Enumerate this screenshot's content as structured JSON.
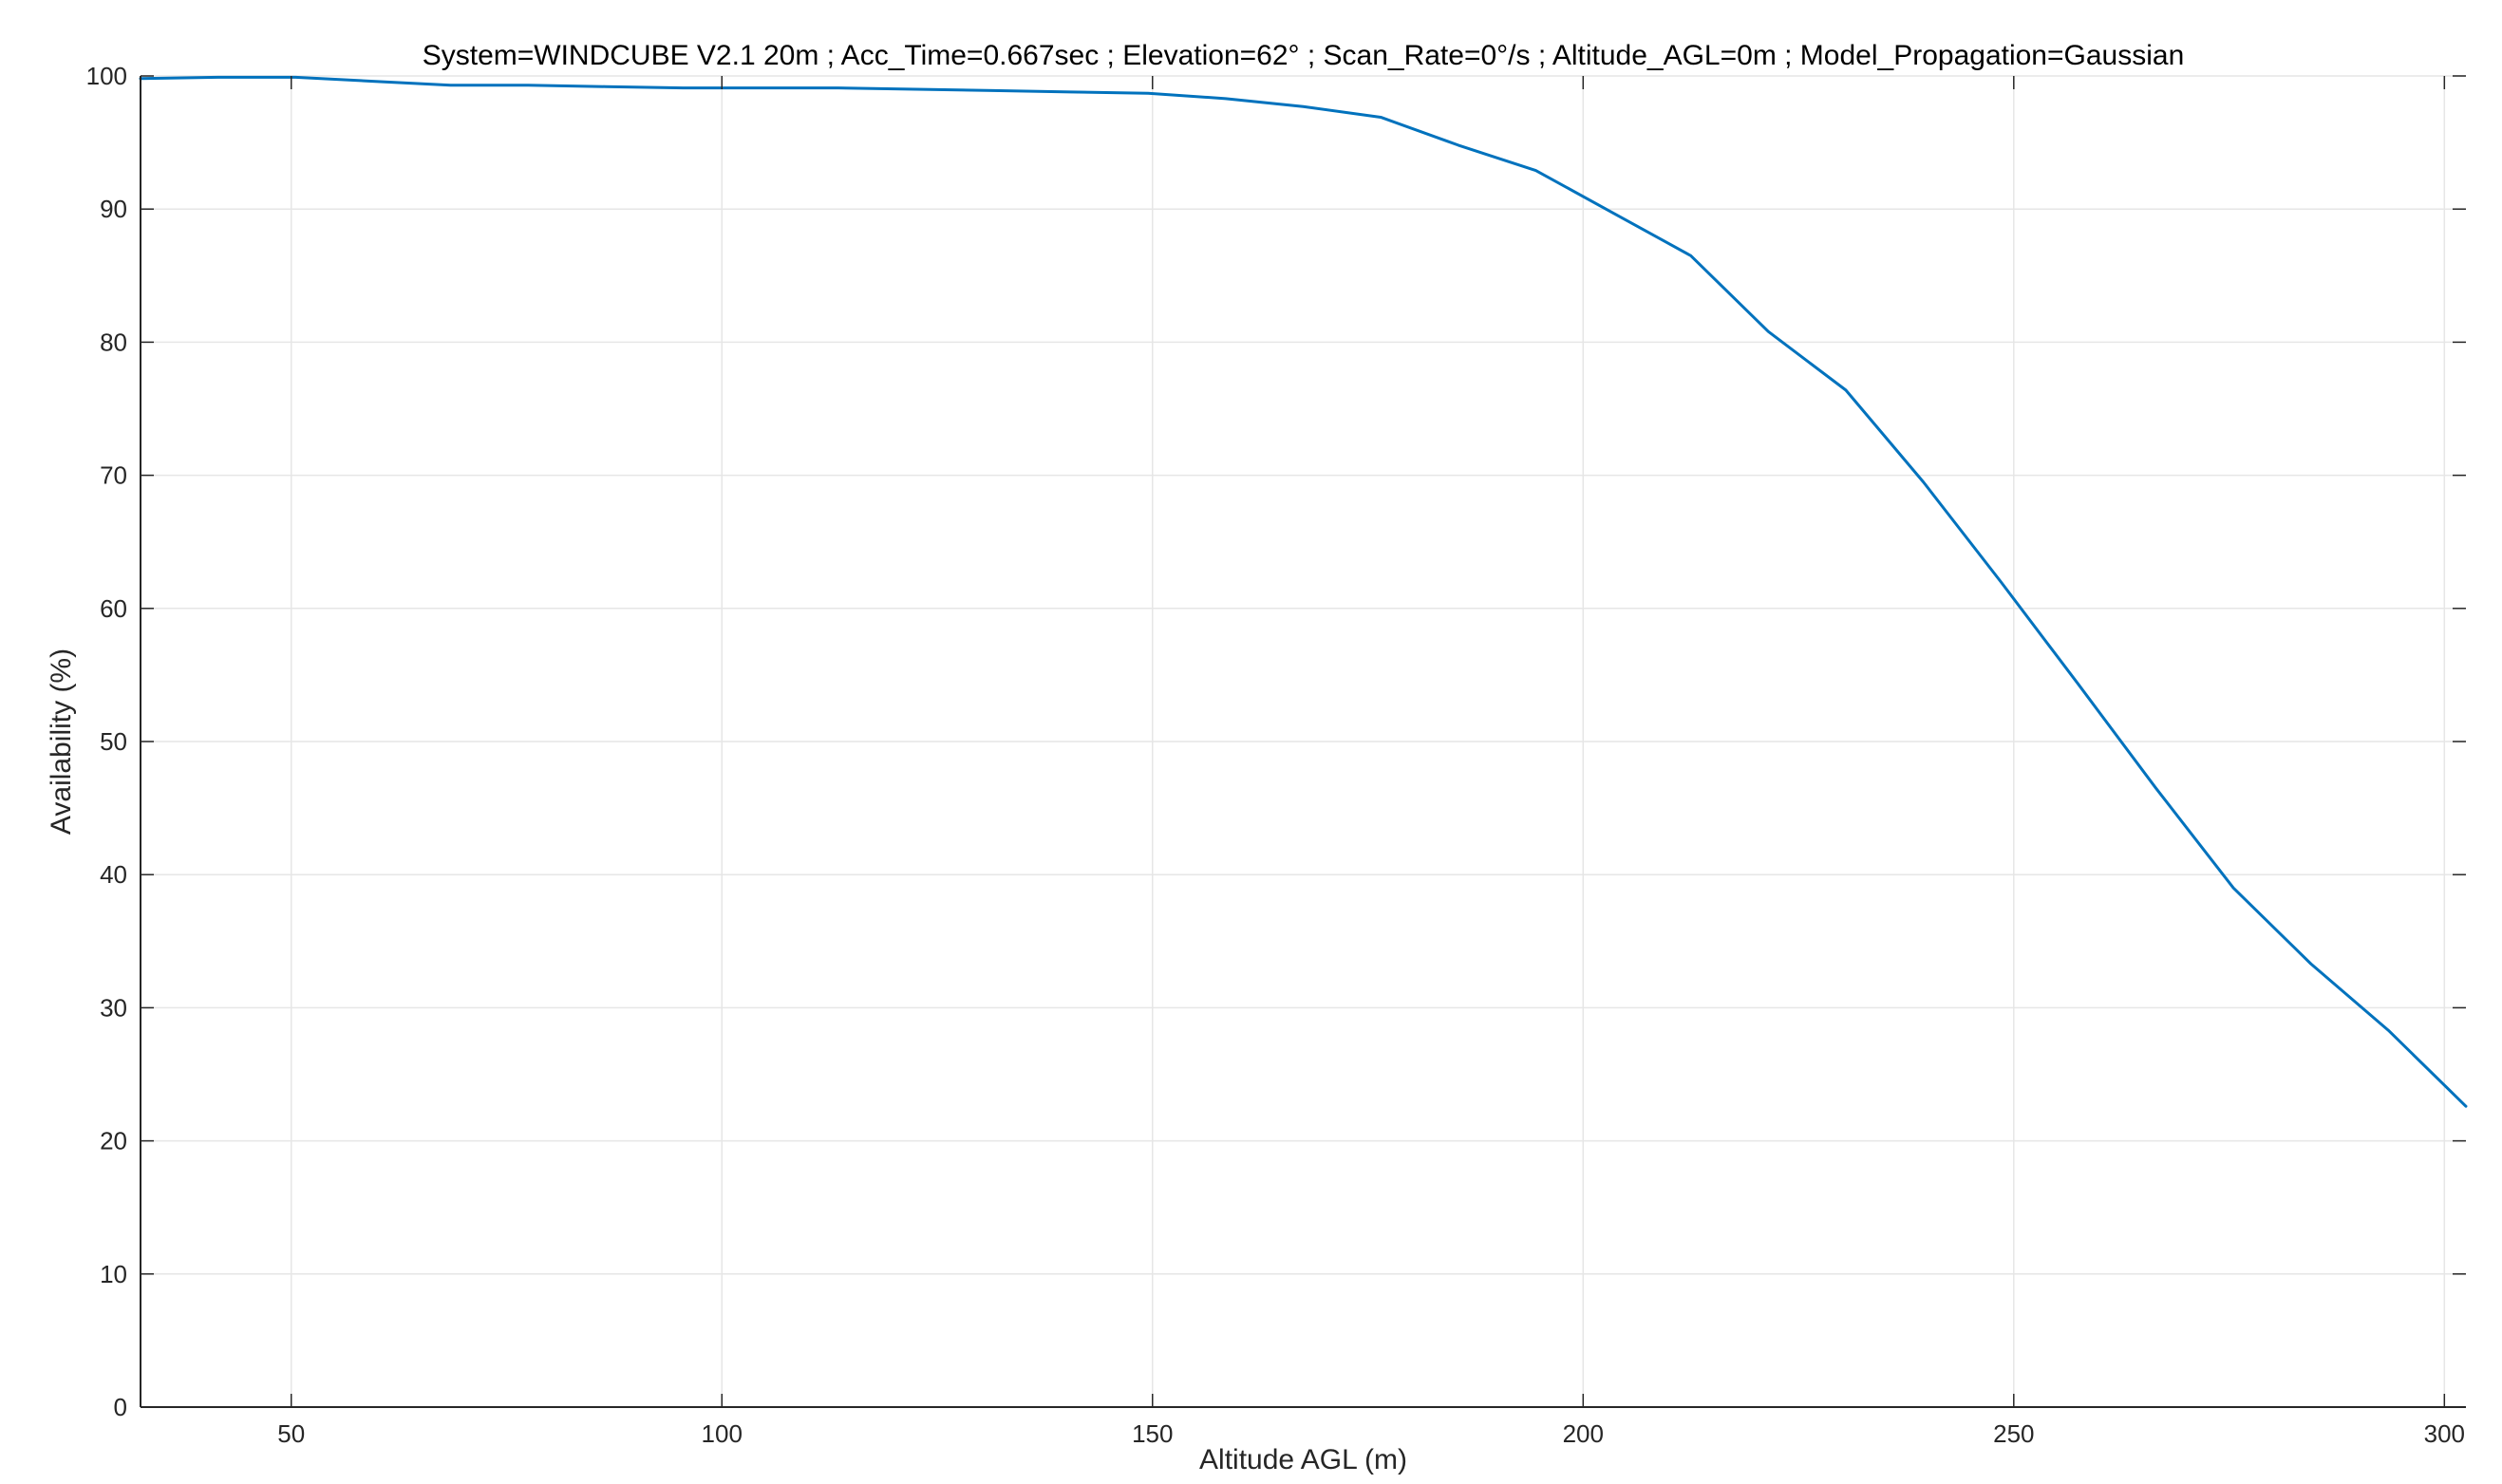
{
  "chart_data": {
    "type": "line",
    "title": "System=WINDCUBE V2.1  20m ; Acc_Time=0.667sec ; Elevation=62° ; Scan_Rate=0°/s ; Altitude_AGL=0m ; Model_Propagation=Gaussian",
    "xlabel": "Altitude AGL (m)",
    "ylabel": "Availability (%)",
    "xlim": [
      32.5,
      302.5
    ],
    "ylim": [
      0,
      100
    ],
    "xticks": [
      50,
      100,
      150,
      200,
      250,
      300
    ],
    "yticks": [
      0,
      10,
      20,
      30,
      40,
      50,
      60,
      70,
      80,
      90,
      100
    ],
    "grid": true,
    "series": [
      {
        "color": "#0072bd",
        "x": [
          32.5,
          41.5,
          50.5,
          59.5,
          68.5,
          77.5,
          86.5,
          95.5,
          104.5,
          113.5,
          122.5,
          131.5,
          140.5,
          149.5,
          158.5,
          167.5,
          176.5,
          185.5,
          194.5,
          203.5,
          212.5,
          221.5,
          230.5,
          239.5,
          248.5,
          257.5,
          266.5,
          275.5,
          284.5,
          293.5,
          302.5
        ],
        "y": [
          99.8,
          99.9,
          99.9,
          99.6,
          99.3,
          99.3,
          99.2,
          99.1,
          99.1,
          99.1,
          99.0,
          98.9,
          98.8,
          98.7,
          98.3,
          97.7,
          96.9,
          94.8,
          92.9,
          89.7,
          86.5,
          80.8,
          76.4,
          69.5,
          62.0,
          54.3,
          46.5,
          39.0,
          33.3,
          28.3,
          22.6
        ]
      }
    ]
  }
}
